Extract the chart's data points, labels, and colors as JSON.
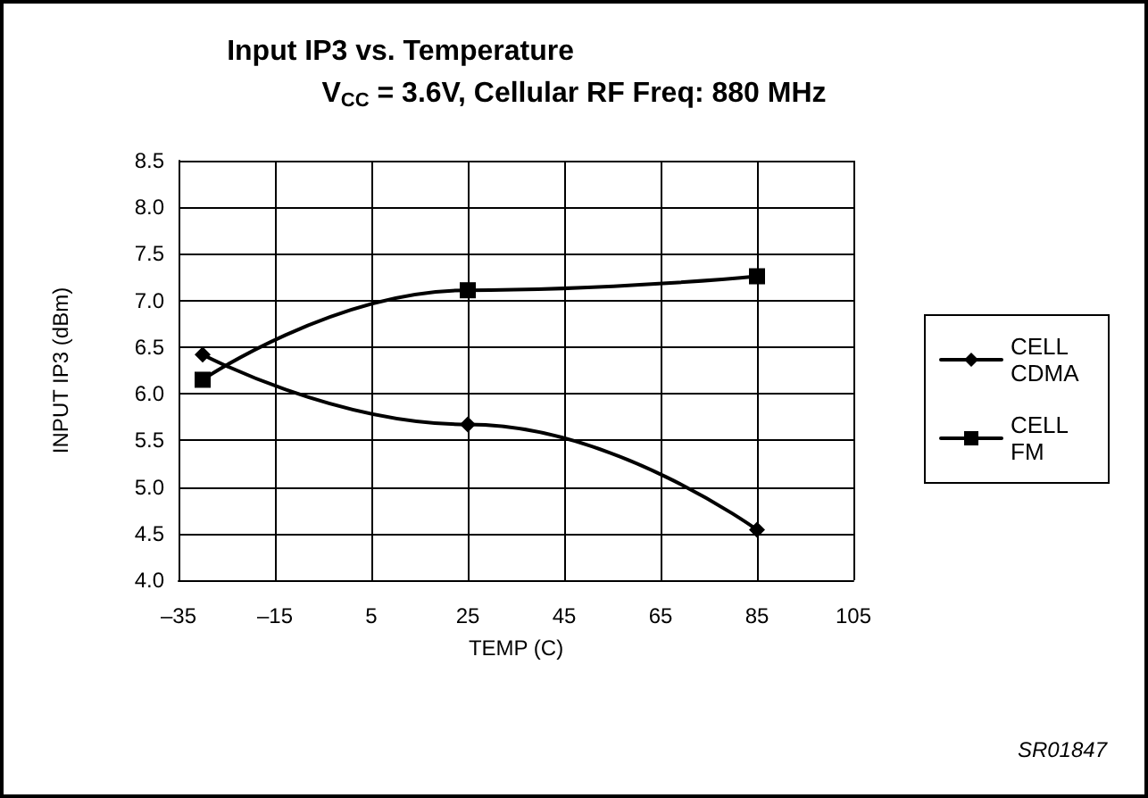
{
  "chart_data": {
    "type": "line",
    "title": "Input IP3 vs. Temperature",
    "subtitle": "V$_{CC}$ = 3.6V, Cellular RF Freq: 880 MHz",
    "xlabel": "TEMP (C)",
    "ylabel": "INPUT IP3 (dBm)",
    "x": [
      -30,
      25,
      85
    ],
    "series": [
      {
        "name": "CELL CDMA",
        "color": "#000000",
        "marker": "diamond",
        "values": [
          6.42,
          5.67,
          4.54
        ]
      },
      {
        "name": "CELL FM",
        "color": "#000000",
        "marker": "square",
        "values": [
          6.15,
          7.11,
          7.26
        ]
      }
    ],
    "xlim": [
      -35,
      105
    ],
    "xticks": [
      {
        "value": -35,
        "label": "–35"
      },
      {
        "value": -15,
        "label": "–15"
      },
      5,
      25,
      45,
      65,
      85,
      105
    ],
    "ylim": [
      4.0,
      8.5
    ],
    "yticks": [
      {
        "value": 4.0,
        "label": "4.0"
      },
      4.5,
      {
        "value": 5.0,
        "label": "5.0"
      },
      5.5,
      {
        "value": 6.0,
        "label": "6.0"
      },
      6.5,
      {
        "value": 7.0,
        "label": "7.0"
      },
      7.5,
      {
        "value": 8.0,
        "label": "8.0"
      },
      8.5
    ],
    "grid": true,
    "legend": "right",
    "line_style": "solid",
    "annotations": [
      "SR01847"
    ]
  }
}
